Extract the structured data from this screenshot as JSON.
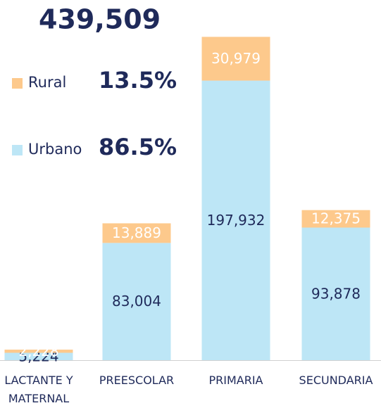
{
  "chart_data": {
    "type": "stacked-bar",
    "title": "439,509",
    "categories": [
      "LACTANTE Y MATERNAL",
      "PREESCOLAR",
      "PRIMARIA",
      "SECUNDARIA"
    ],
    "series": [
      {
        "name": "Urbano",
        "share_label": "86.5%",
        "color": "#bde6f6",
        "label_color": "#1f2a5a",
        "values": [
          5224,
          83004,
          197932,
          93878
        ],
        "value_labels": [
          "5,224",
          "83,004",
          "197,932",
          "93,878"
        ]
      },
      {
        "name": "Rural",
        "share_label": "13.5%",
        "color": "#fdc98c",
        "label_color": "#ffffff",
        "values": [
          2228,
          13889,
          30979,
          12375
        ],
        "value_labels": [
          "2,228",
          "13,889",
          "30,979",
          "12,375"
        ]
      }
    ],
    "ylim": [
      0,
      255000
    ]
  }
}
